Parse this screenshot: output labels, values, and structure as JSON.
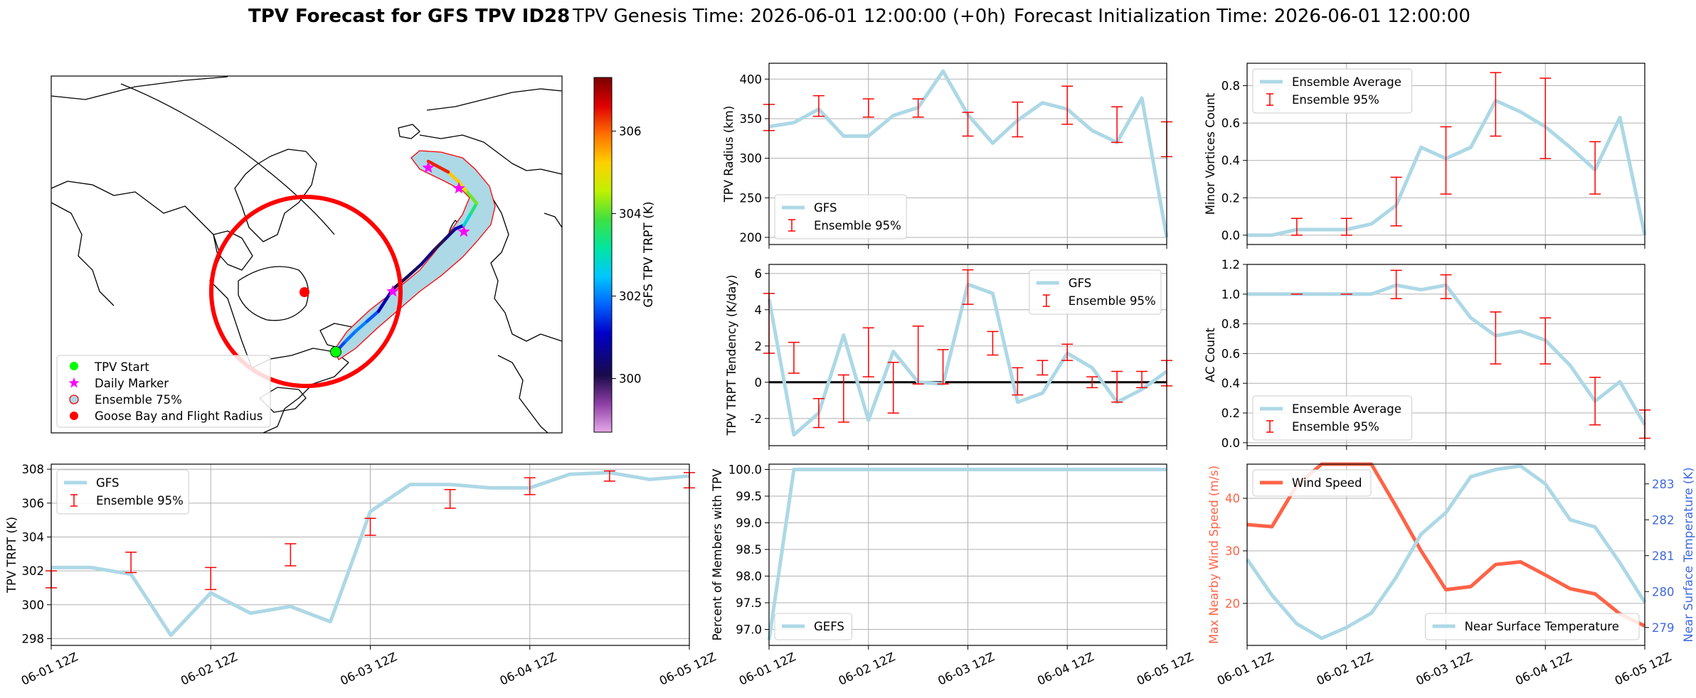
{
  "title": {
    "bold": "TPV Forecast for GFS TPV ID28",
    "genesis": "TPV Genesis Time: 2026-06-01 12:00:00 (+0h)",
    "init": "Forecast Initialization Time: 2026-06-01 12:00:00"
  },
  "colors": {
    "gfs_line": "#add8e6",
    "ensemble_bar": "#ff0000",
    "wind_line": "#ff6347",
    "temp_axis": "#4169e1",
    "goose_circle": "#ff0000",
    "track_start": "#00ff00",
    "daily_marker": "#ff00ff",
    "ensemble_shade": "#add8e6"
  },
  "map": {
    "legend": [
      {
        "label": "TPV Start",
        "icon": "green-dot-icon"
      },
      {
        "label": "Daily Marker",
        "icon": "magenta-star-icon"
      },
      {
        "label": "Ensemble 75%",
        "icon": "shaded-circle-icon"
      },
      {
        "label": "Goose Bay and Flight Radius",
        "icon": "red-dot-icon"
      }
    ],
    "colorbar": {
      "label": "GFS TPV TRPT (K)",
      "ticks": [
        "300",
        "302",
        "304",
        "306"
      ],
      "range": [
        298.7,
        307.3
      ]
    },
    "track_trpt": [
      301.6,
      301.9,
      302.0,
      301.7,
      300.9,
      300.1,
      300.3,
      300.6,
      300.0,
      300.5,
      301.0,
      302.8,
      303.5,
      304.1,
      305.0,
      305.3,
      306.4,
      306.7
    ]
  },
  "chart_data": [
    {
      "id": "trpt",
      "type": "line",
      "ylabel": "TPV TRPT (K)",
      "ylim": [
        297.6,
        308.3
      ],
      "yticks": [
        298,
        300,
        302,
        304,
        306,
        308
      ],
      "xlim": [
        0,
        16
      ],
      "xticks": [
        "06-01 12Z",
        "06-02 12Z",
        "06-03 12Z",
        "06-04 12Z",
        "06-05 12Z"
      ],
      "grid": true,
      "legend_loc": "upper left",
      "series": [
        {
          "name": "GFS",
          "x": [
            0,
            1,
            2,
            3,
            4,
            5,
            6,
            7,
            8,
            9,
            10,
            11,
            12,
            13,
            14,
            15,
            16
          ],
          "values": [
            302.2,
            302.2,
            301.8,
            298.2,
            300.7,
            299.5,
            299.9,
            299.0,
            305.5,
            307.1,
            307.1,
            306.9,
            306.9,
            307.7,
            307.8,
            307.4,
            307.6
          ]
        },
        {
          "name": "Ensemble 95%",
          "kind": "errorbar",
          "x": [
            0,
            2,
            4,
            6,
            8,
            10,
            12,
            14,
            16
          ],
          "low": [
            301.0,
            301.9,
            300.9,
            302.3,
            304.1,
            305.7,
            306.5,
            307.3,
            306.9
          ],
          "high": [
            302.0,
            303.1,
            302.2,
            303.6,
            305.1,
            306.8,
            307.5,
            307.9,
            307.8
          ]
        }
      ]
    },
    {
      "id": "radius",
      "type": "line",
      "ylabel": "TPV Radius (km)",
      "ylim": [
        191,
        420
      ],
      "yticks": [
        200,
        250,
        300,
        350,
        400
      ],
      "xlim": [
        0,
        16
      ],
      "grid": true,
      "legend_loc": "lower left",
      "series": [
        {
          "name": "GFS",
          "x": [
            0,
            1,
            2,
            3,
            4,
            5,
            6,
            7,
            8,
            9,
            10,
            11,
            12,
            13,
            14,
            15,
            16
          ],
          "values": [
            340,
            345,
            362,
            328,
            328,
            354,
            364,
            410,
            355,
            319,
            348,
            370,
            362,
            335,
            320,
            376,
            200
          ]
        },
        {
          "name": "Ensemble 95%",
          "kind": "errorbar",
          "x": [
            0,
            2,
            4,
            6,
            8,
            10,
            12,
            14,
            16
          ],
          "low": [
            335,
            353,
            352,
            352,
            328,
            327,
            343,
            320,
            302
          ],
          "high": [
            368,
            379,
            375,
            375,
            358,
            371,
            391,
            365,
            346
          ]
        }
      ]
    },
    {
      "id": "minor",
      "type": "line",
      "ylabel": "Minor Vortices Count",
      "ylim": [
        -0.05,
        0.92
      ],
      "yticks": [
        0.0,
        0.2,
        0.4,
        0.6,
        0.8
      ],
      "xlim": [
        0,
        16
      ],
      "grid": true,
      "legend_loc": "upper left",
      "series": [
        {
          "name": "Ensemble Average",
          "x": [
            0,
            1,
            2,
            3,
            4,
            5,
            6,
            7,
            8,
            9,
            10,
            11,
            12,
            13,
            14,
            15,
            16
          ],
          "values": [
            0.0,
            0.0,
            0.03,
            0.03,
            0.03,
            0.06,
            0.16,
            0.47,
            0.41,
            0.47,
            0.72,
            0.66,
            0.58,
            0.47,
            0.35,
            0.63,
            0.0
          ]
        },
        {
          "name": "Ensemble 95%",
          "kind": "errorbar",
          "x": [
            2,
            4,
            6,
            8,
            10,
            12,
            14
          ],
          "low": [
            0.0,
            0.0,
            0.05,
            0.22,
            0.53,
            0.41,
            0.22
          ],
          "high": [
            0.09,
            0.09,
            0.31,
            0.58,
            0.87,
            0.84,
            0.5
          ]
        }
      ]
    },
    {
      "id": "tendency",
      "type": "line",
      "ylabel": "TPV TRPT Tendency (K/day)",
      "ylim": [
        -3.5,
        6.5
      ],
      "yticks": [
        -2,
        0,
        2,
        4,
        6
      ],
      "xlim": [
        0,
        16
      ],
      "grid": true,
      "legend_loc": "upper right",
      "zero_line": true,
      "series": [
        {
          "name": "GFS",
          "x": [
            0,
            1,
            2,
            3,
            4,
            5,
            6,
            7,
            8,
            9,
            10,
            11,
            12,
            13,
            14,
            15,
            16
          ],
          "values": [
            4.6,
            -2.9,
            -1.7,
            2.6,
            -2.1,
            1.7,
            0.0,
            -0.1,
            5.4,
            4.9,
            -1.1,
            -0.6,
            1.6,
            0.8,
            -1.1,
            -0.4,
            0.6
          ]
        },
        {
          "name": "Ensemble 95%",
          "kind": "errorbar",
          "x": [
            0,
            1,
            2,
            3,
            4,
            5,
            6,
            7,
            8,
            9,
            10,
            11,
            12,
            13,
            14,
            15,
            16
          ],
          "low": [
            1.6,
            0.5,
            -2.5,
            -2.2,
            0.3,
            -1.7,
            -0.1,
            -0.1,
            4.3,
            1.5,
            -0.7,
            0.4,
            1.2,
            -0.3,
            -1.1,
            -0.3,
            -0.2
          ],
          "high": [
            4.9,
            2.2,
            -0.9,
            0.4,
            3.0,
            1.1,
            3.1,
            1.8,
            6.2,
            2.8,
            0.8,
            1.2,
            2.1,
            0.3,
            0.6,
            0.6,
            1.2
          ]
        }
      ]
    },
    {
      "id": "ac",
      "type": "line",
      "ylabel": "AC Count",
      "ylim": [
        -0.02,
        1.2
      ],
      "yticks": [
        0.0,
        0.2,
        0.4,
        0.6,
        0.8,
        1.0,
        1.2
      ],
      "xlim": [
        0,
        16
      ],
      "grid": true,
      "legend_loc": "lower left",
      "series": [
        {
          "name": "Ensemble Average",
          "x": [
            0,
            1,
            2,
            3,
            4,
            5,
            6,
            7,
            8,
            9,
            10,
            11,
            12,
            13,
            14,
            15,
            16
          ],
          "values": [
            1.0,
            1.0,
            1.0,
            1.0,
            1.0,
            1.0,
            1.06,
            1.03,
            1.06,
            0.84,
            0.72,
            0.75,
            0.69,
            0.52,
            0.28,
            0.41,
            0.12
          ]
        },
        {
          "name": "Ensemble 95%",
          "kind": "errorbar",
          "x": [
            2,
            4,
            6,
            8,
            10,
            12,
            14,
            16
          ],
          "low": [
            1.0,
            1.0,
            0.97,
            0.97,
            0.53,
            0.53,
            0.12,
            0.03
          ],
          "high": [
            1.0,
            1.0,
            1.16,
            1.13,
            0.88,
            0.84,
            0.44,
            0.22
          ]
        }
      ]
    },
    {
      "id": "members",
      "type": "line",
      "ylabel": "Percent of Members with TPV",
      "ylim": [
        96.7,
        100.1
      ],
      "yticks": [
        97.0,
        97.5,
        98.0,
        98.5,
        99.0,
        99.5,
        100.0
      ],
      "xlim": [
        0,
        16
      ],
      "xticks": [
        "06-01 12Z",
        "06-02 12Z",
        "06-03 12Z",
        "06-04 12Z",
        "06-05 12Z"
      ],
      "grid": true,
      "legend_loc": "lower left",
      "series": [
        {
          "name": "GEFS",
          "x": [
            0,
            1,
            2,
            3,
            4,
            5,
            6,
            7,
            8,
            9,
            10,
            11,
            12,
            13,
            14,
            15,
            16
          ],
          "values": [
            96.8,
            100,
            100,
            100,
            100,
            100,
            100,
            100,
            100,
            100,
            100,
            100,
            100,
            100,
            100,
            100,
            100
          ]
        }
      ]
    },
    {
      "id": "wind_temp",
      "type": "line",
      "ylabel": "Max Nearby Wind Speed (m/s)",
      "ylabel_right": "Near Surface Temperature (K)",
      "ylim": [
        12,
        46.5
      ],
      "yticks": [
        20,
        30,
        40
      ],
      "ylim_right": [
        278.5,
        283.55
      ],
      "yticks_right": [
        279,
        280,
        281,
        282,
        283
      ],
      "xlim": [
        0,
        16
      ],
      "xticks": [
        "06-01 12Z",
        "06-02 12Z",
        "06-03 12Z",
        "06-04 12Z",
        "06-05 12Z"
      ],
      "grid": true,
      "series": [
        {
          "name": "Wind Speed",
          "axis": "left",
          "legend_loc": "upper left",
          "x": [
            0,
            1,
            2,
            3,
            4,
            5,
            6,
            7,
            8,
            9,
            10,
            11,
            12,
            13,
            14,
            15,
            16
          ],
          "values": [
            35,
            34.6,
            42.5,
            46.5,
            46.5,
            46.5,
            38.4,
            30,
            22.6,
            23.2,
            27.4,
            27.9,
            25.4,
            22.8,
            21.8,
            18,
            15.7
          ]
        },
        {
          "name": "Near Surface Temperature",
          "axis": "right",
          "legend_loc": "lower right",
          "x": [
            0,
            1,
            2,
            3,
            4,
            5,
            6,
            7,
            8,
            9,
            10,
            11,
            12,
            13,
            14,
            15,
            16
          ],
          "values": [
            280.9,
            279.9,
            279.1,
            278.7,
            279.0,
            279.4,
            280.4,
            281.6,
            282.2,
            283.2,
            283.4,
            283.5,
            283.0,
            282.0,
            281.8,
            280.8,
            279.7
          ]
        }
      ]
    }
  ]
}
